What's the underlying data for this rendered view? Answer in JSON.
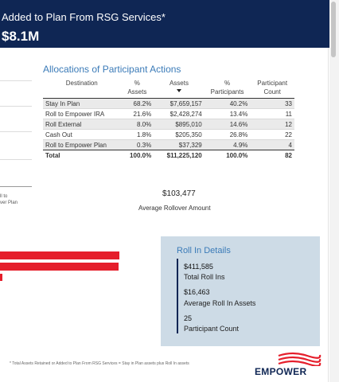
{
  "header": {
    "title": "Added to Plan From RSG Services*",
    "amount": "$8.1M"
  },
  "left_panel": {
    "bar_label": "ll to\nver Plan"
  },
  "allocations": {
    "title": "Allocations of Participant Actions",
    "columns": {
      "destination": "Destination",
      "pct_assets": "% Assets",
      "assets": "Assets",
      "pct_participants": "% Participants",
      "participant_count": "Participant Count"
    },
    "rows": [
      {
        "destination": "Stay In Plan",
        "pct_assets": "68.2%",
        "assets": "$7,659,157",
        "pct_participants": "40.2%",
        "count": "33"
      },
      {
        "destination": "Roll to Empower IRA",
        "pct_assets": "21.6%",
        "assets": "$2,428,274",
        "pct_participants": "13.4%",
        "count": "11"
      },
      {
        "destination": "Roll External",
        "pct_assets": "8.0%",
        "assets": "$895,010",
        "pct_participants": "14.6%",
        "count": "12"
      },
      {
        "destination": "Cash Out",
        "pct_assets": "1.8%",
        "assets": "$205,350",
        "pct_participants": "26.8%",
        "count": "22"
      },
      {
        "destination": "Roll to Empower Plan",
        "pct_assets": "0.3%",
        "assets": "$37,329",
        "pct_participants": "4.9%",
        "count": "4"
      }
    ],
    "total": {
      "destination": "Total",
      "pct_assets": "100.0%",
      "assets": "$11,225,120",
      "pct_participants": "100.0%",
      "count": "82"
    }
  },
  "average_rollover": {
    "value": "$103,477",
    "label": "Average Rollover Amount"
  },
  "roll_in": {
    "title": "Roll In Details",
    "total_value": "$411,585",
    "total_label": "Total Roll Ins",
    "avg_value": "$16,463",
    "avg_label": "Average Roll In Assets",
    "count_value": "25",
    "count_label": "Participant Count"
  },
  "footnote": "* Total Assets Retained or Added to Plan From RSG Services = Stay in Plan assets plus Roll In assets",
  "logo": {
    "text": "EMPOWER",
    "color": "#e51e2b"
  },
  "colors": {
    "header_bg": "#0f2654",
    "accent_blue": "#3b7bb8",
    "bar_red": "#e51e2b",
    "panel_bg": "#cddbe6"
  },
  "bars": [
    {
      "fraction": 1.0
    },
    {
      "fraction": 0.99
    },
    {
      "fraction": 0.02
    }
  ]
}
